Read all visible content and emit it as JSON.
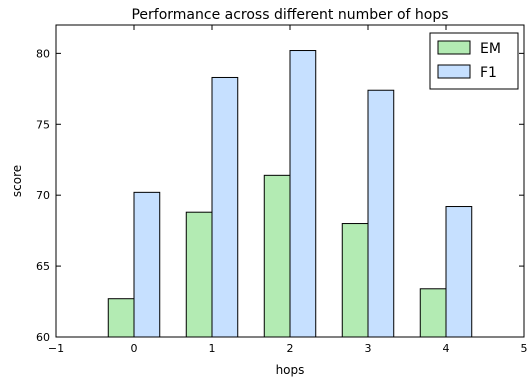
{
  "chart_data": {
    "type": "bar",
    "title": "Performance across different number of hops",
    "xlabel": "hops",
    "ylabel": "score",
    "x": [
      0,
      1,
      2,
      3,
      4
    ],
    "xlim": [
      -1,
      5
    ],
    "ylim": [
      60,
      82
    ],
    "xticks": [
      -1,
      0,
      1,
      2,
      3,
      4,
      5
    ],
    "xtick_labels": [
      "−1",
      "0",
      "1",
      "2",
      "3",
      "4",
      "5"
    ],
    "yticks": [
      60,
      65,
      70,
      75,
      80
    ],
    "ytick_labels": [
      "60",
      "65",
      "70",
      "75",
      "80"
    ],
    "grid": false,
    "legend_position": "top-right",
    "series": [
      {
        "name": "EM",
        "color": "#b3ebb3",
        "values": [
          62.7,
          68.8,
          71.4,
          68.0,
          63.4
        ]
      },
      {
        "name": "F1",
        "color": "#c6e0ff",
        "values": [
          70.2,
          78.3,
          80.2,
          77.4,
          69.2
        ]
      }
    ]
  }
}
